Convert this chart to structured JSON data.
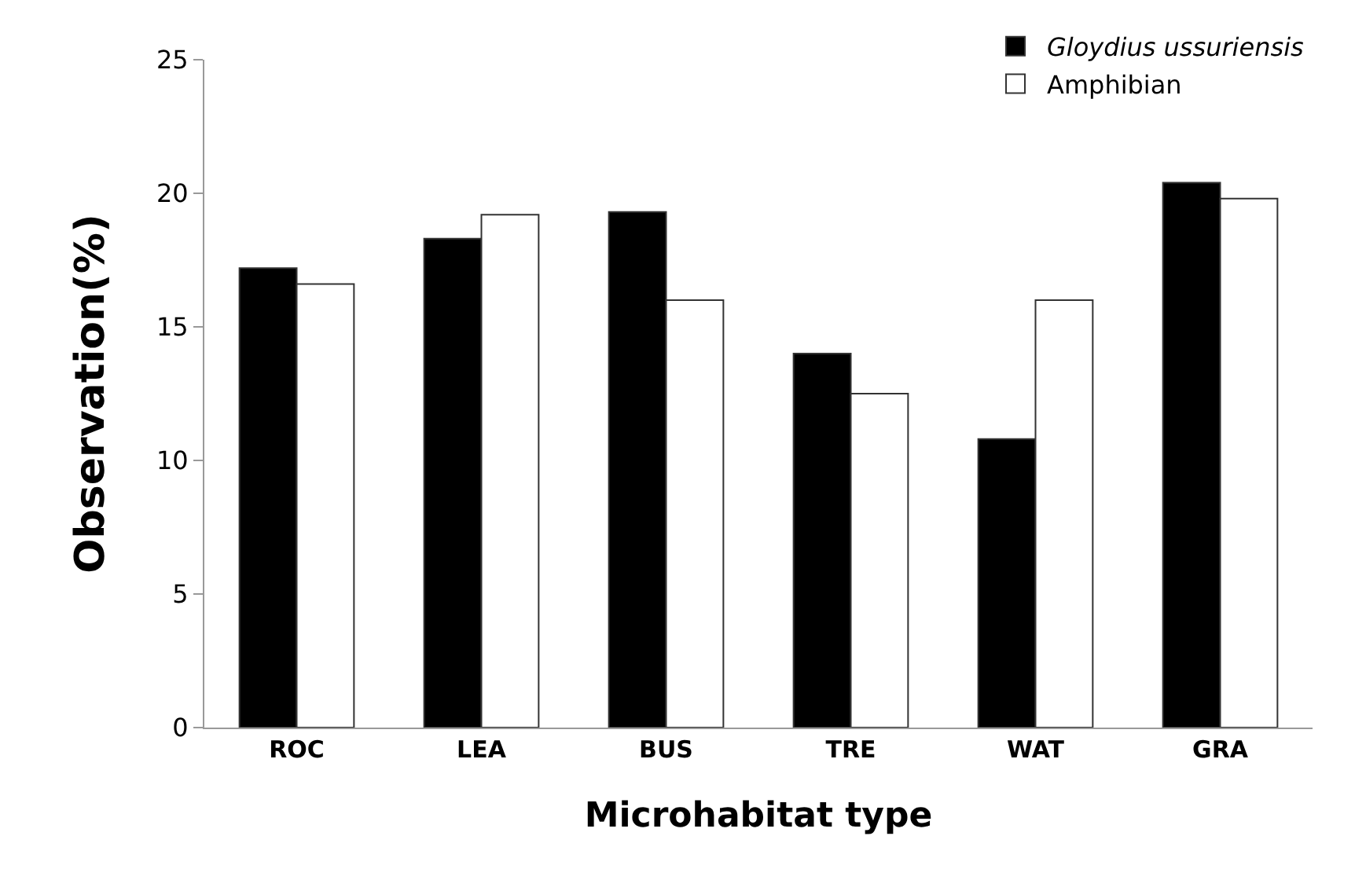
{
  "chart_data": {
    "type": "bar",
    "xlabel": "Microhabitat type",
    "ylabel": "Observation(%)",
    "categories": [
      "ROC",
      "LEA",
      "BUS",
      "TRE",
      "WAT",
      "GRA"
    ],
    "series": [
      {
        "name": "Gloydius ussuriensis",
        "color": "#000000",
        "values": [
          17.2,
          18.3,
          19.3,
          14.0,
          10.8,
          20.4
        ]
      },
      {
        "name": "Amphibian",
        "color": "#ffffff",
        "values": [
          16.6,
          19.2,
          16.0,
          12.5,
          16.0,
          19.8
        ]
      }
    ],
    "ylim": [
      0,
      25
    ],
    "yticks": [
      0,
      5,
      10,
      15,
      20,
      25
    ],
    "legend": "top right"
  }
}
